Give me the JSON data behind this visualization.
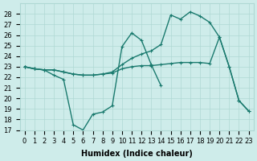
{
  "xlabel": "Humidex (Indice chaleur)",
  "x": [
    0,
    1,
    2,
    3,
    4,
    5,
    6,
    7,
    8,
    9,
    10,
    11,
    12,
    13,
    14,
    15,
    16,
    17,
    18,
    19,
    20,
    21,
    22,
    23
  ],
  "series_top": [
    23,
    22.8,
    22.7,
    22.2,
    21.8,
    17.5,
    17.0,
    18.5,
    18.7,
    19.3,
    24.9,
    26.2,
    25.5,
    23.2,
    21.2,
    null,
    null,
    null,
    null,
    null,
    null,
    null,
    null,
    null
  ],
  "series_mid": [
    23,
    22.8,
    22.7,
    22.7,
    22.5,
    22.3,
    22.2,
    22.2,
    22.3,
    22.5,
    23.2,
    23.8,
    24.2,
    24.5,
    25.1,
    27.9,
    27.5,
    28.2,
    27.8,
    27.2,
    25.8,
    23.0,
    19.8,
    18.8
  ],
  "series_bot": [
    23,
    22.8,
    22.7,
    22.7,
    22.5,
    22.3,
    22.2,
    22.2,
    22.3,
    22.4,
    22.8,
    23.0,
    23.1,
    23.1,
    23.2,
    23.3,
    23.4,
    23.4,
    23.4,
    23.3,
    25.8,
    23.0,
    19.8,
    18.8
  ],
  "ylim": [
    17,
    29
  ],
  "yticks": [
    17,
    18,
    19,
    20,
    21,
    22,
    23,
    24,
    25,
    26,
    27,
    28
  ],
  "bg_color": "#ceecea",
  "grid_color": "#afd8d4",
  "line_color": "#1a7a6e",
  "markersize": 3,
  "linewidth": 1.0,
  "label_fontsize": 7,
  "tick_fontsize": 6
}
